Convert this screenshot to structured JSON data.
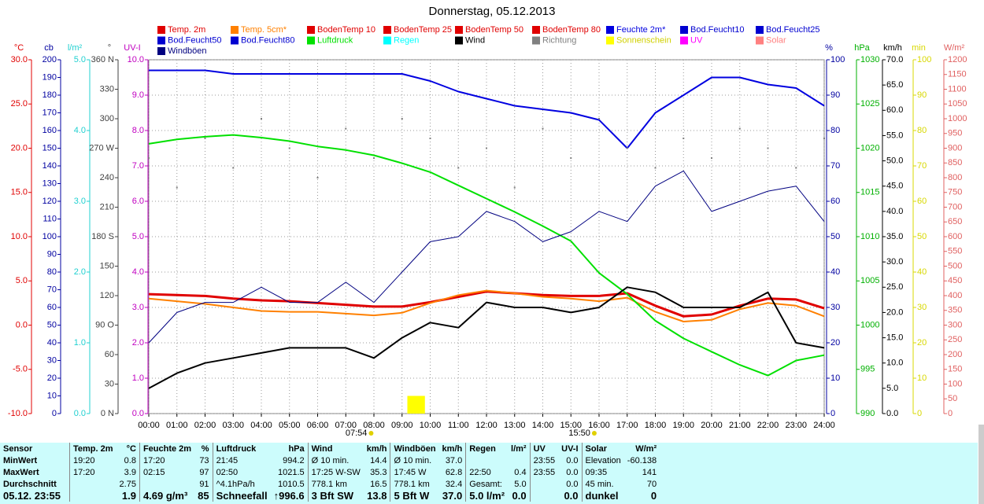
{
  "chart_data": {
    "type": "line",
    "title": "Donnerstag, 05.12.2013",
    "x": [
      0,
      1,
      2,
      3,
      4,
      5,
      6,
      7,
      8,
      9,
      10,
      11,
      12,
      13,
      14,
      15,
      16,
      17,
      18,
      19,
      20,
      21,
      22,
      23,
      24
    ],
    "xlim": [
      0,
      24
    ],
    "xticks": [
      {
        "value": 0,
        "label": "00:00"
      },
      {
        "value": 1,
        "label": "01:00"
      },
      {
        "value": 2,
        "label": "02:00"
      },
      {
        "value": 3,
        "label": "03:00"
      },
      {
        "value": 4,
        "label": "04:00"
      },
      {
        "value": 5,
        "label": "05:00"
      },
      {
        "value": 6,
        "label": "06:00"
      },
      {
        "value": 7,
        "label": "07:00"
      },
      {
        "value": 8,
        "label": "08:00"
      },
      {
        "value": 9,
        "label": "09:00"
      },
      {
        "value": 10,
        "label": "10:00"
      },
      {
        "value": 11,
        "label": "11:00"
      },
      {
        "value": 12,
        "label": "12:00"
      },
      {
        "value": 13,
        "label": "13:00"
      },
      {
        "value": 14,
        "label": "14:00"
      },
      {
        "value": 15,
        "label": "15:00"
      },
      {
        "value": 16,
        "label": "16:00"
      },
      {
        "value": 17,
        "label": "17:00"
      },
      {
        "value": 18,
        "label": "18:00"
      },
      {
        "value": 19,
        "label": "19:00"
      },
      {
        "value": 20,
        "label": "20:00"
      },
      {
        "value": 21,
        "label": "21:00"
      },
      {
        "value": 22,
        "label": "22:00"
      },
      {
        "value": 23,
        "label": "23:00"
      },
      {
        "value": 24,
        "label": "24:00"
      }
    ],
    "grid": true,
    "axes": [
      {
        "id": "temp",
        "label": "°C",
        "side": "left",
        "color": "#e00000",
        "lim": [
          -10,
          30
        ],
        "ticks": [
          {
            "value": -10,
            "label": "-10.0"
          },
          {
            "value": -5,
            "label": "-5.0"
          },
          {
            "value": 0,
            "label": "0.0"
          },
          {
            "value": 5,
            "label": "5.0"
          },
          {
            "value": 10,
            "label": "10.0"
          },
          {
            "value": 15,
            "label": "15.0"
          },
          {
            "value": 20,
            "label": "20.0"
          },
          {
            "value": 25,
            "label": "25.0"
          },
          {
            "value": 30,
            "label": "30.0"
          }
        ]
      },
      {
        "id": "cb",
        "label": "cb",
        "side": "left",
        "color": "#0000a0",
        "lim": [
          0,
          200
        ],
        "ticks": [
          0,
          10,
          20,
          30,
          40,
          50,
          60,
          70,
          80,
          90,
          100,
          110,
          120,
          130,
          140,
          150,
          160,
          170,
          180,
          190,
          200
        ]
      },
      {
        "id": "rain",
        "label": "l/m²",
        "side": "left",
        "color": "#20d0d0",
        "lim": [
          0,
          5
        ],
        "ticks": [
          {
            "value": 0,
            "label": "0.0"
          },
          {
            "value": 1,
            "label": "1.0"
          },
          {
            "value": 2,
            "label": "2.0"
          },
          {
            "value": 3,
            "label": "3.0"
          },
          {
            "value": 4,
            "label": "4.0"
          },
          {
            "value": 5,
            "label": "5.0"
          }
        ]
      },
      {
        "id": "deg",
        "label": "°",
        "side": "left",
        "color": "#404040",
        "lim": [
          0,
          360
        ],
        "ticks": [
          {
            "value": 0,
            "label": "0 N"
          },
          30,
          60,
          {
            "value": 90,
            "label": "90 O"
          },
          120,
          150,
          {
            "value": 180,
            "label": "180 S"
          },
          210,
          240,
          {
            "value": 270,
            "label": "270 W"
          },
          300,
          330,
          {
            "value": 360,
            "label": "360 N"
          }
        ]
      },
      {
        "id": "uv",
        "label": "UV-I",
        "side": "left",
        "color": "#c000c0",
        "lim": [
          0,
          10
        ],
        "grid": true,
        "ticks": [
          {
            "value": 0,
            "label": "0.0"
          },
          {
            "value": 1,
            "label": "1.0"
          },
          {
            "value": 2,
            "label": "2.0"
          },
          {
            "value": 3,
            "label": "3.0"
          },
          {
            "value": 4,
            "label": "4.0"
          },
          {
            "value": 5,
            "label": "5.0"
          },
          {
            "value": 6,
            "label": "6.0"
          },
          {
            "value": 7,
            "label": "7.0"
          },
          {
            "value": 8,
            "label": "8.0"
          },
          {
            "value": 9,
            "label": "9.0"
          },
          {
            "value": 10,
            "label": "10.0"
          }
        ]
      },
      {
        "id": "pct",
        "label": "%",
        "side": "right",
        "color": "#0000a0",
        "lim": [
          0,
          100
        ],
        "ticks": [
          0,
          10,
          20,
          30,
          40,
          50,
          60,
          70,
          80,
          90,
          100
        ]
      },
      {
        "id": "hpa",
        "label": "hPa",
        "side": "right",
        "color": "#00b000",
        "lim": [
          990,
          1030
        ],
        "ticks": [
          990,
          995,
          1000,
          1005,
          1010,
          1015,
          1020,
          1025,
          1030
        ]
      },
      {
        "id": "kmh",
        "label": "km/h",
        "side": "right",
        "color": "#000000",
        "lim": [
          0,
          70
        ],
        "ticks": [
          {
            "value": 0,
            "label": "0.0"
          },
          {
            "value": 5,
            "label": "5.0"
          },
          {
            "value": 10,
            "label": "10.0"
          },
          {
            "value": 15,
            "label": "15.0"
          },
          {
            "value": 20,
            "label": "20.0"
          },
          {
            "value": 25,
            "label": "25.0"
          },
          {
            "value": 30,
            "label": "30.0"
          },
          {
            "value": 35,
            "label": "35.0"
          },
          {
            "value": 40,
            "label": "40.0"
          },
          {
            "value": 45,
            "label": "45.0"
          },
          {
            "value": 50,
            "label": "50.0"
          },
          {
            "value": 55,
            "label": "55.0"
          },
          {
            "value": 60,
            "label": "60.0"
          },
          {
            "value": 65,
            "label": "65.0"
          },
          {
            "value": 70,
            "label": "70.0"
          }
        ]
      },
      {
        "id": "min",
        "label": "min",
        "side": "right",
        "color": "#d8d800",
        "lim": [
          0,
          100
        ],
        "ticks": [
          0,
          10,
          20,
          30,
          40,
          50,
          60,
          70,
          80,
          90,
          100
        ]
      },
      {
        "id": "wm2",
        "label": "W/m²",
        "side": "right",
        "color": "#e06060",
        "lim": [
          0,
          1200
        ],
        "ticks": [
          0,
          50,
          100,
          150,
          200,
          250,
          300,
          350,
          400,
          450,
          500,
          550,
          600,
          650,
          700,
          750,
          800,
          850,
          900,
          950,
          1000,
          1050,
          1100,
          1150,
          1200
        ]
      }
    ],
    "series": [
      {
        "name": "Temp. 2m",
        "color": "#e00000",
        "axis": "temp",
        "line_width": 3,
        "values": [
          3.5,
          3.4,
          3.3,
          3.0,
          2.8,
          2.7,
          2.5,
          2.3,
          2.1,
          2.1,
          2.6,
          3.2,
          3.8,
          3.6,
          3.4,
          3.3,
          3.3,
          3.6,
          2.2,
          1.0,
          1.2,
          2.2,
          3.0,
          2.9,
          1.9
        ]
      },
      {
        "name": "Temp. 5cm*",
        "color": "#ff8000",
        "axis": "temp",
        "line_width": 2,
        "values": [
          3.0,
          2.7,
          2.4,
          2.0,
          1.6,
          1.5,
          1.5,
          1.3,
          1.1,
          1.4,
          2.5,
          3.4,
          3.9,
          3.6,
          3.2,
          3.0,
          2.7,
          3.1,
          1.5,
          0.4,
          0.6,
          1.8,
          2.5,
          2.2,
          1.0
        ]
      },
      {
        "name": "BodenTemp 10",
        "color": "#e00000"
      },
      {
        "name": "BodenTemp 25",
        "color": "#e00000"
      },
      {
        "name": "BodenTemp 50",
        "color": "#e00000"
      },
      {
        "name": "BodenTemp 80",
        "color": "#e00000"
      },
      {
        "name": "Feuchte 2m*",
        "color": "#0000e0",
        "axis": "pct",
        "line_width": 2,
        "values": [
          97,
          97,
          97,
          96,
          96,
          96,
          96,
          96,
          96,
          96,
          94,
          91,
          89,
          87,
          86,
          85,
          83,
          75,
          85,
          90,
          95,
          95,
          93,
          92,
          87
        ]
      },
      {
        "name": "Bod.Feucht10",
        "color": "#0000d0"
      },
      {
        "name": "Bod.Feucht25",
        "color": "#0000d0"
      },
      {
        "name": "Bod.Feucht50",
        "color": "#0000d0"
      },
      {
        "name": "Bod.Feucht80",
        "color": "#0000d0"
      },
      {
        "name": "Luftdruck",
        "color": "#00e000",
        "axis": "hpa",
        "line_width": 2,
        "values": [
          1020.5,
          1021,
          1021.3,
          1021.5,
          1021.2,
          1020.8,
          1020.2,
          1019.8,
          1019.2,
          1018.3,
          1017.3,
          1015.8,
          1014.3,
          1012.8,
          1011.2,
          1009.5,
          1005.9,
          1003.5,
          1000.5,
          998.5,
          997,
          995.5,
          994.3,
          996,
          996.6
        ]
      },
      {
        "name": "Regen",
        "color": "#00ffff"
      },
      {
        "name": "Wind",
        "color": "#000000",
        "axis": "kmh",
        "line_width": 2,
        "values": [
          5,
          8,
          10,
          11,
          12,
          13,
          13,
          13,
          11,
          15,
          18,
          17,
          22,
          21,
          21,
          20,
          21,
          25,
          24,
          21,
          21,
          21,
          24,
          14,
          13
        ]
      },
      {
        "name": "Richtung",
        "color": "#808080",
        "axis": "deg",
        "style": "dots",
        "values": [
          260,
          230,
          280,
          250,
          300,
          270,
          240,
          290,
          260,
          300,
          280,
          250,
          270,
          230,
          290,
          260,
          300,
          270,
          250,
          280,
          260,
          290,
          270,
          250,
          280
        ]
      },
      {
        "name": "Sonnenschein",
        "color": "#ffff00",
        "axis": "min",
        "style": "bar",
        "x": [
          9.3,
          9.5,
          9.7
        ],
        "values": [
          5,
          5,
          5
        ]
      },
      {
        "name": "UV",
        "color": "#ff00ff"
      },
      {
        "name": "Solar",
        "color": "#ff8080"
      },
      {
        "name": "Windböen",
        "color": "#000080",
        "axis": "kmh",
        "line_width": 1,
        "values": [
          14,
          20,
          22,
          22,
          25,
          22,
          22,
          26,
          22,
          28,
          34,
          35,
          40,
          38,
          34,
          36,
          40,
          38,
          45,
          48,
          40,
          42,
          44,
          45,
          38
        ]
      }
    ],
    "annotations": [
      {
        "x": 7.9,
        "label": "07:54"
      },
      {
        "x": 15.83,
        "label": "15:50"
      }
    ]
  },
  "table": {
    "header": [
      "Sensor",
      "Temp. 2m",
      "°C",
      "Feuchte 2m",
      "%",
      "Luftdruck",
      "hPa",
      "Wind",
      "km/h",
      "Windböen",
      "km/h",
      "Regen",
      "l/m²",
      "UV",
      "UV-I",
      "Solar",
      "W/m²"
    ],
    "rows": [
      [
        "MinWert",
        "19:20",
        "0.8",
        "17:20",
        "73",
        "21:45",
        "994.2",
        "Ø 10 min.",
        "14.4",
        "Ø 10 min.",
        "37.0",
        null,
        null,
        "23:55",
        "0.0",
        "Elevation",
        "-60.138"
      ],
      [
        "MaxWert",
        "17:20",
        "3.9",
        "02:15",
        "97",
        "02:50",
        "1021.5",
        "17:25 W-SW",
        "35.3",
        "17:45 W",
        "62.8",
        "22:50",
        "0.4",
        "23:55",
        "0.0",
        "09:35",
        "141"
      ],
      [
        "Durchschnitt",
        null,
        "2.75",
        null,
        "91",
        "^4.1hPa/h",
        "1010.5",
        "778.1 km",
        "16.5",
        "778.1 km",
        "32.4",
        "Gesamt:",
        "5.0",
        null,
        "0.0",
        "45 min.",
        "70"
      ],
      [
        "05.12. 23:55",
        null,
        "1.9",
        "4.69 g/m³",
        "85",
        "Schneefall",
        "↑996.6",
        "3 Bft SW",
        "13.8",
        "5 Bft W",
        "37.0",
        "5.0 l/m²",
        "0.0",
        null,
        "0.0",
        "dunkel",
        "0"
      ]
    ]
  }
}
